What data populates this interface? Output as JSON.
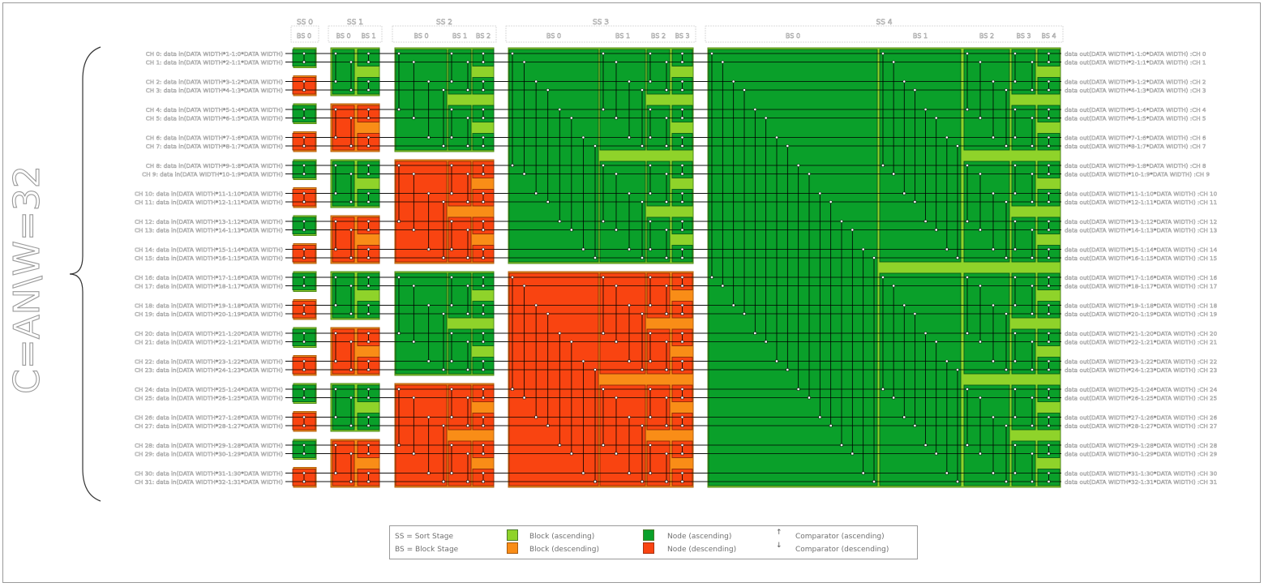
{
  "brace_label": "C=AN\\W=32",
  "stages": [
    {
      "name": "SS 0",
      "blocks": [
        "BS 0"
      ]
    },
    {
      "name": "SS 1",
      "blocks": [
        "BS 0",
        "BS 1"
      ]
    },
    {
      "name": "SS 2",
      "blocks": [
        "BS 0",
        "BS 1",
        "BS 2"
      ]
    },
    {
      "name": "SS 3",
      "blocks": [
        "BS 0",
        "BS 1",
        "BS 2",
        "BS 3"
      ]
    },
    {
      "name": "SS 4",
      "blocks": [
        "BS 0",
        "BS 1",
        "BS 2",
        "BS 3",
        "BS 4"
      ]
    }
  ],
  "input_labels": [
    "CH 0: data in(DATA WIDTH*1-1:0*DATA WIDTH)",
    "CH 1: data in(DATA WIDTH*2-1:1*DATA WIDTH)",
    "CH 2: data in(DATA WIDTH*3-1:2*DATA WIDTH)",
    "CH 3: data in(DATA WIDTH*4-1:3*DATA WIDTH)",
    "CH 4: data in(DATA WIDTH*5-1:4*DATA WIDTH)",
    "CH 5: data in(DATA WIDTH*6-1:5*DATA WIDTH)",
    "CH 6: data in(DATA WIDTH*7-1:6*DATA WIDTH)",
    "CH 7: data in(DATA WIDTH*8-1:7*DATA WIDTH)",
    "CH 8: data in(DATA WIDTH*9-1:8*DATA WIDTH)",
    "CH 9: data in(DATA WIDTH*10-1:9*DATA WIDTH)",
    "CH 10: data in(DATA WIDTH*11-1:10*DATA WIDTH)",
    "CH 11: data in(DATA WIDTH*12-1:11*DATA WIDTH)",
    "CH 12: data in(DATA WIDTH*13-1:12*DATA WIDTH)",
    "CH 13: data in(DATA WIDTH*14-1:13*DATA WIDTH)",
    "CH 14: data in(DATA WIDTH*15-1:14*DATA WIDTH)",
    "CH 15: data in(DATA WIDTH*16-1:15*DATA WIDTH)",
    "CH 16: data in(DATA WIDTH*17-1:16*DATA WIDTH)",
    "CH 17: data in(DATA WIDTH*18-1:17*DATA WIDTH)",
    "CH 18: data in(DATA WIDTH*19-1:18*DATA WIDTH)",
    "CH 19: data in(DATA WIDTH*20-1:19*DATA WIDTH)",
    "CH 20: data in(DATA WIDTH*21-1:20*DATA WIDTH)",
    "CH 21: data in(DATA WIDTH*22-1:21*DATA WIDTH)",
    "CH 22: data in(DATA WIDTH*23-1:22*DATA WIDTH)",
    "CH 23: data in(DATA WIDTH*24-1:23*DATA WIDTH)",
    "CH 24: data in(DATA WIDTH*25-1:24*DATA WIDTH)",
    "CH 25: data in(DATA WIDTH*26-1:25*DATA WIDTH)",
    "CH 26: data in(DATA WIDTH*27-1:26*DATA WIDTH)",
    "CH 27: data in(DATA WIDTH*28-1:27*DATA WIDTH)",
    "CH 28: data in(DATA WIDTH*29-1:28*DATA WIDTH)",
    "CH 29: data in(DATA WIDTH*30-1:29*DATA WIDTH)",
    "CH 30: data in(DATA WIDTH*31-1:30*DATA WIDTH)",
    "CH 31: data in(DATA WIDTH*32-1:31*DATA WIDTH)"
  ],
  "output_labels": [
    "data out(DATA WIDTH*1-1:0*DATA WIDTH) :CH 0",
    "data out(DATA WIDTH*2-1:1*DATA WIDTH) :CH 1",
    "data out(DATA WIDTH*3-1:2*DATA WIDTH) :CH 2",
    "data out(DATA WIDTH*4-1:3*DATA WIDTH) :CH 3",
    "data out(DATA WIDTH*5-1:4*DATA WIDTH) :CH 4",
    "data out(DATA WIDTH*6-1:5*DATA WIDTH) :CH 5",
    "data out(DATA WIDTH*7-1:6*DATA WIDTH) :CH 6",
    "data out(DATA WIDTH*8-1:7*DATA WIDTH) :CH 7",
    "data out(DATA WIDTH*9-1:8*DATA WIDTH) :CH 8",
    "data out(DATA WIDTH*10-1:9*DATA WIDTH) :CH 9",
    "data out(DATA WIDTH*11-1:10*DATA WIDTH) :CH 10",
    "data out(DATA WIDTH*12-1:11*DATA WIDTH) :CH 11",
    "data out(DATA WIDTH*13-1:12*DATA WIDTH) :CH 12",
    "data out(DATA WIDTH*14-1:13*DATA WIDTH) :CH 13",
    "data out(DATA WIDTH*15-1:14*DATA WIDTH) :CH 14",
    "data out(DATA WIDTH*16-1:15*DATA WIDTH) :CH 15",
    "data out(DATA WIDTH*17-1:16*DATA WIDTH) :CH 16",
    "data out(DATA WIDTH*18-1:17*DATA WIDTH) :CH 17",
    "data out(DATA WIDTH*19-1:18*DATA WIDTH) :CH 18",
    "data out(DATA WIDTH*20-1:19*DATA WIDTH) :CH 19",
    "data out(DATA WIDTH*21-1:20*DATA WIDTH) :CH 20",
    "data out(DATA WIDTH*22-1:21*DATA WIDTH) :CH 21",
    "data out(DATA WIDTH*23-1:22*DATA WIDTH) :CH 22",
    "data out(DATA WIDTH*24-1:23*DATA WIDTH) :CH 23",
    "data out(DATA WIDTH*25-1:24*DATA WIDTH) :CH 24",
    "data out(DATA WIDTH*26-1:25*DATA WIDTH) :CH 25",
    "data out(DATA WIDTH*27-1:26*DATA WIDTH) :CH 26",
    "data out(DATA WIDTH*28-1:27*DATA WIDTH) :CH 27",
    "data out(DATA WIDTH*29-1:28*DATA WIDTH) :CH 28",
    "data out(DATA WIDTH*30-1:29*DATA WIDTH) :CH 29",
    "data out(DATA WIDTH*31-1:30*DATA WIDTH) :CH 30",
    "data out(DATA WIDTH*32-1:31*DATA WIDTH) :CH 31"
  ],
  "legend": {
    "ss": "SS = Sort Stage",
    "bs": "BS = Block Stage",
    "block_asc": "Block (ascending)",
    "block_desc": "Block (descending)",
    "node_asc": "Node (ascending)",
    "node_desc": "Node (descending)",
    "comp_asc": "Comparator (ascending)",
    "comp_desc": "Comparator (descending)",
    "comp_asc_glyph": "↑",
    "comp_desc_glyph": "↓"
  },
  "colors": {
    "block_ascending": "#8fd32a",
    "block_descending": "#f98d17",
    "node_ascending": "#0aa02a",
    "node_descending": "#f94411",
    "wire": "#000000",
    "label_text": "#606060"
  }
}
